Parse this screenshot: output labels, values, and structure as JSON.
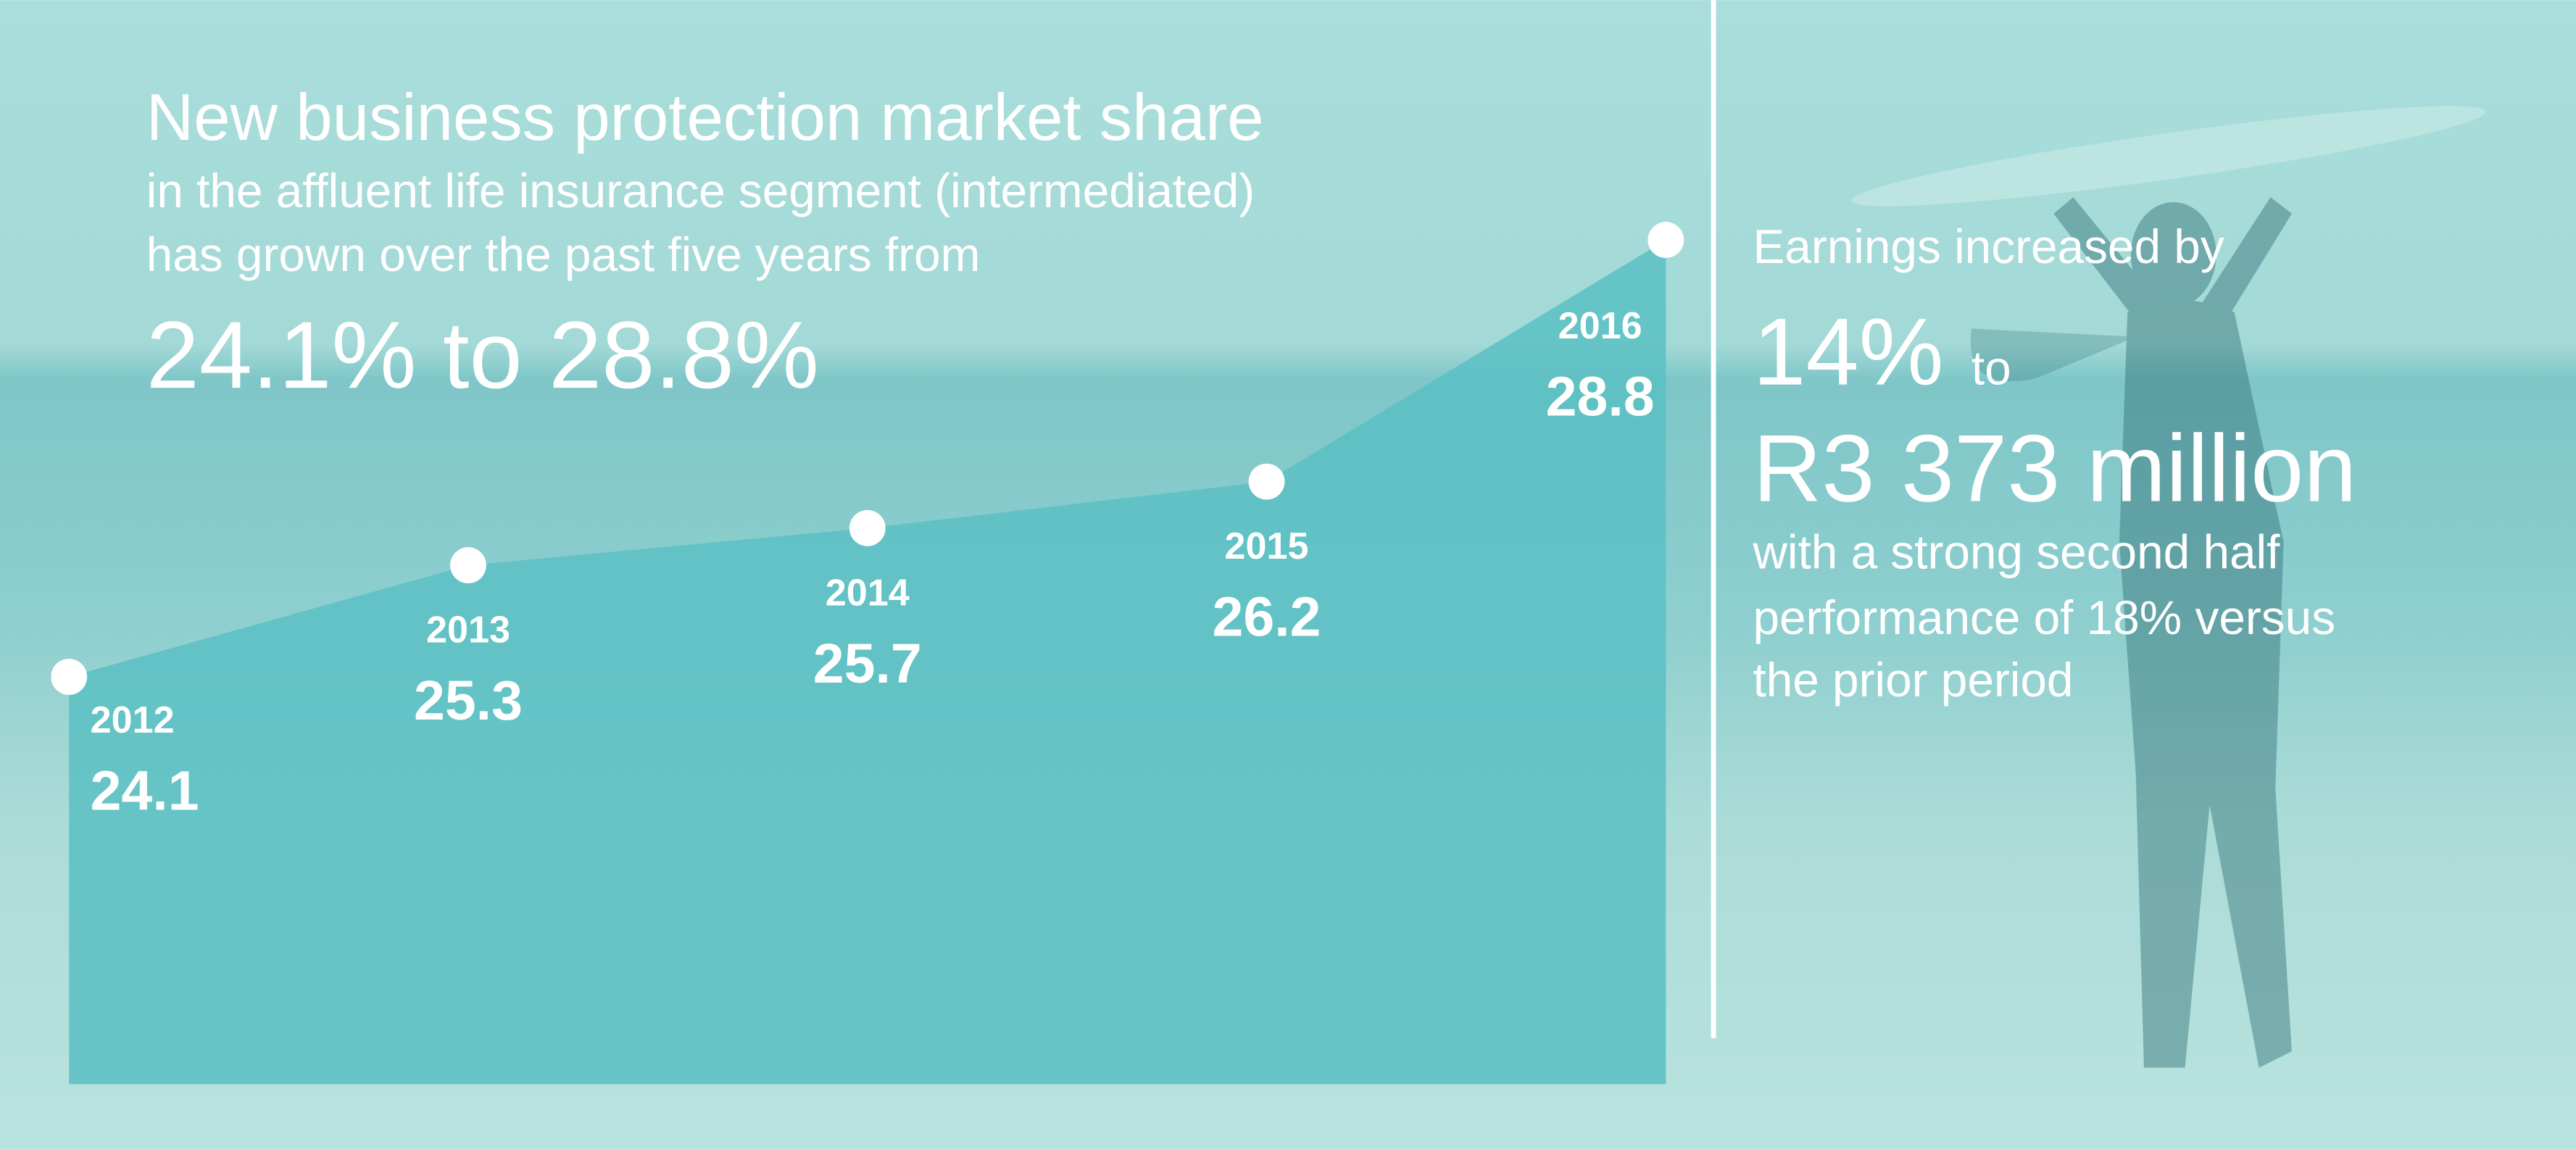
{
  "chart_data": {
    "type": "area",
    "title": "New business protection market share",
    "subtitle": [
      "in the affluent life insurance segment (intermediated)",
      "has grown over the past five years from"
    ],
    "highlight": "24.1% to 28.8%",
    "categories": [
      "2012",
      "2013",
      "2014",
      "2015",
      "2016"
    ],
    "values": [
      24.1,
      25.3,
      25.7,
      26.2,
      28.8
    ],
    "color": "#5bbfc3"
  },
  "panel": {
    "lead": "Earnings increased by",
    "figure": "14%",
    "connector": "to",
    "amount": "R3 373 million",
    "body": [
      "with a strong second half",
      "performance of 18% versus",
      "the prior period"
    ]
  }
}
